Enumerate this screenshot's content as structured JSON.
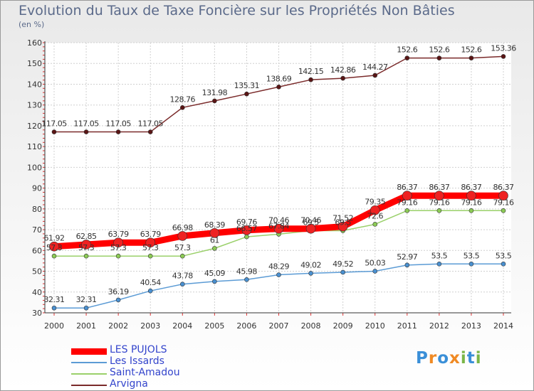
{
  "chart_data": {
    "type": "line",
    "title": "Evolution du Taux de Taxe Foncière sur les Propriétés Non Bâties",
    "ylabel": "(en %)",
    "xlabel": "",
    "categories": [
      "2000",
      "2001",
      "2002",
      "2003",
      "2004",
      "2005",
      "2006",
      "2007",
      "2008",
      "2009",
      "2010",
      "2011",
      "2012",
      "2013",
      "2014"
    ],
    "ylim": [
      30,
      160
    ],
    "yticks": [
      "30",
      "40",
      "50",
      "60",
      "70",
      "80",
      "90",
      "100",
      "110",
      "120",
      "130",
      "140",
      "150",
      "160"
    ],
    "grid": true,
    "legend_position": "bottom-left",
    "series": [
      {
        "name": "LES PUJOLS",
        "color": "#ff0000",
        "values": [
          61.92,
          62.85,
          63.79,
          63.79,
          66.98,
          68.39,
          69.76,
          70.46,
          70.46,
          71.52,
          79.35,
          86.37,
          86.37,
          86.37,
          86.37
        ],
        "labels": [
          "61.92",
          "62.85",
          "63.79",
          "63.79",
          "66.98",
          "68.39",
          "69.76",
          "70.46",
          "70.46",
          "71.52",
          "79.35",
          "86.37",
          "86.37",
          "86.37",
          "86.37"
        ]
      },
      {
        "name": "Les Issards",
        "color": "#5b9bd5",
        "values": [
          32.31,
          32.31,
          36.19,
          40.54,
          43.78,
          45.09,
          45.98,
          48.29,
          49.02,
          49.52,
          50.03,
          52.97,
          53.5,
          53.5,
          53.5
        ],
        "labels": [
          "32.31",
          "32.31",
          "36.19",
          "40.54",
          "43.78",
          "45.09",
          "45.98",
          "48.29",
          "49.02",
          "49.52",
          "50.03",
          "52.97",
          "53.5",
          "53.5",
          "53.5"
        ]
      },
      {
        "name": "Saint-Amadou",
        "color": "#9ad06a",
        "values": [
          57.3,
          57.3,
          57.3,
          57.3,
          57.3,
          61,
          66.57,
          67.84,
          69.5,
          69.5,
          72.6,
          79.16,
          79.16,
          79.16,
          79.16
        ],
        "labels": [
          "57.3",
          "57.3",
          "57.3",
          "57.3",
          "57.3",
          "61",
          "66.57",
          "67.84",
          "69.5",
          "69.5",
          "72.6",
          "79.16",
          "79.16",
          "79.16",
          "79.16"
        ]
      },
      {
        "name": "Arvigna",
        "color": "#7a2a2a",
        "values": [
          117.05,
          117.05,
          117.05,
          117.05,
          128.76,
          131.98,
          135.31,
          138.69,
          142.15,
          142.86,
          144.27,
          152.6,
          152.6,
          152.6,
          153.36
        ],
        "labels": [
          "117.05",
          "117.05",
          "117.05",
          "117.05",
          "128.76",
          "131.98",
          "135.31",
          "138.69",
          "142.15",
          "142.86",
          "144.27",
          "152.6",
          "152.6",
          "152.6",
          "153.36"
        ]
      }
    ]
  },
  "legend": {
    "items": [
      {
        "label": "LES PUJOLS",
        "color": "#ff0000"
      },
      {
        "label": "Les Issards",
        "color": "#5b9bd5"
      },
      {
        "label": "Saint-Amadou",
        "color": "#9ad06a"
      },
      {
        "label": "Arvigna",
        "color": "#7a2a2a"
      }
    ]
  },
  "logo": {
    "letters": [
      "P",
      "r",
      "o",
      "x",
      "i",
      "t",
      "i"
    ],
    "colors": [
      "#3a8fd8",
      "#f08a24",
      "#3a8fd8",
      "#f08a24",
      "#7ab648",
      "#3a8fd8",
      "#7ab648"
    ]
  }
}
